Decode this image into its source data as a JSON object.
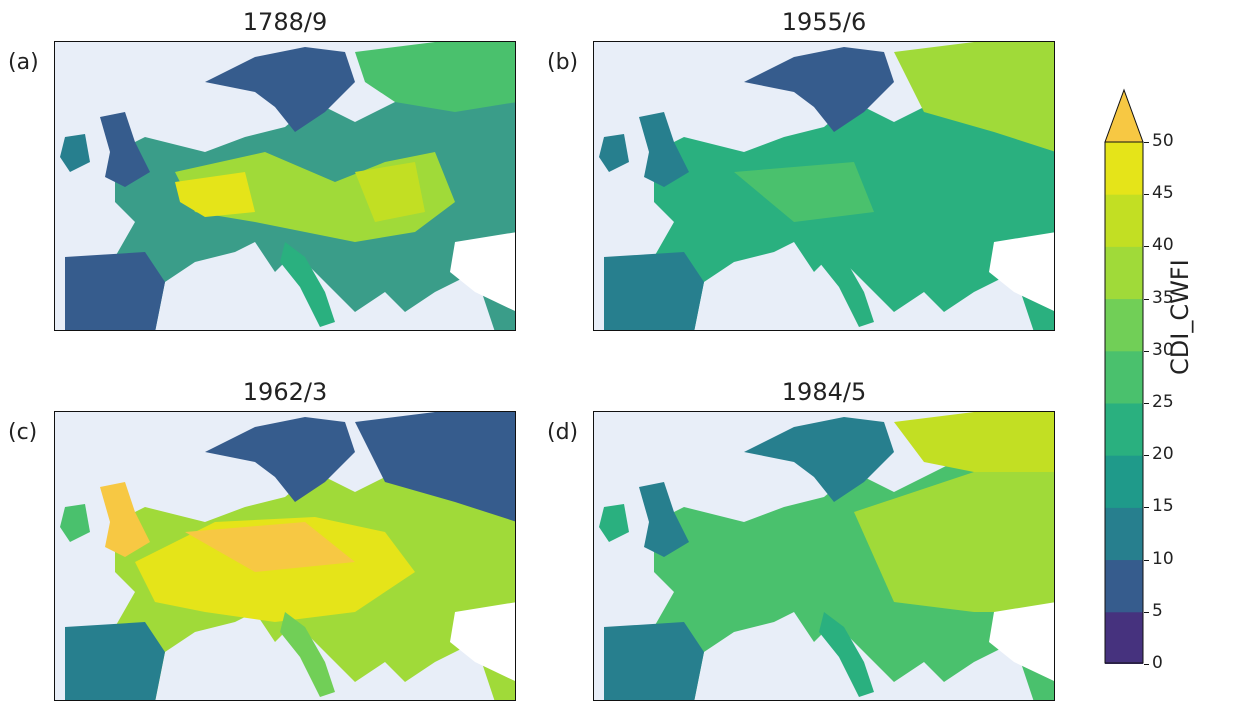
{
  "panels": [
    {
      "letter": "(a)",
      "title": "1788/9"
    },
    {
      "letter": "(b)",
      "title": "1955/6"
    },
    {
      "letter": "(c)",
      "title": "1962/3"
    },
    {
      "letter": "(d)",
      "title": "1984/5"
    }
  ],
  "colorbar": {
    "label": "CDI_CWFI",
    "ticks": [
      "0",
      "5",
      "10",
      "15",
      "20",
      "25",
      "30",
      "35",
      "40",
      "45",
      "50"
    ],
    "colors": [
      "#46327e",
      "#365c8d",
      "#277f8e",
      "#1f9a8a",
      "#2ab07f",
      "#4ac16d",
      "#71cf57",
      "#a0da39",
      "#c2df23",
      "#e5e419",
      "#f7c843"
    ],
    "extend": "max"
  },
  "ocean_color": "#e8eef8",
  "outside_color": "#ffffff"
}
